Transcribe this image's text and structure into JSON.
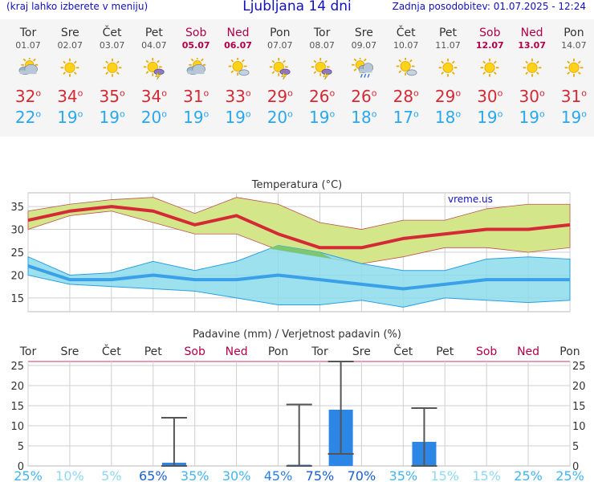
{
  "header": {
    "menu_hint": "(kraj lahko izberete v meniju)",
    "title": "Ljubljana 14 dni",
    "updated": "Zadnja posodobitev: 01.07.2025 - 12:24"
  },
  "colors": {
    "title_blue": "#1010c0",
    "weekend": "#b0004a",
    "tmax_red": "#d42a35",
    "tmin_blue": "#2aa8ee",
    "range_max_fill": "#d4e68a",
    "range_min_fill": "#8cdcec",
    "overlap_fill": "#7cc870",
    "bar_blue": "#2b86e6"
  },
  "days": [
    {
      "name": "Tor",
      "date": "01.07",
      "weekend": false,
      "icon": "partly-cloudy-icon",
      "tmax": "32",
      "tmin": "22"
    },
    {
      "name": "Sre",
      "date": "02.07",
      "weekend": false,
      "icon": "sunny-icon",
      "tmax": "34",
      "tmin": "19"
    },
    {
      "name": "Čet",
      "date": "03.07",
      "weekend": false,
      "icon": "sunny-icon",
      "tmax": "35",
      "tmin": "19"
    },
    {
      "name": "Pet",
      "date": "04.07",
      "weekend": false,
      "icon": "sun-thunderstorm-icon",
      "tmax": "34",
      "tmin": "20"
    },
    {
      "name": "Sob",
      "date": "05.07",
      "weekend": true,
      "icon": "partly-cloudy-icon",
      "tmax": "31",
      "tmin": "19"
    },
    {
      "name": "Ned",
      "date": "06.07",
      "weekend": true,
      "icon": "sun-cloud-icon",
      "tmax": "33",
      "tmin": "19"
    },
    {
      "name": "Pon",
      "date": "07.07",
      "weekend": false,
      "icon": "sun-thunderstorm-icon",
      "tmax": "29",
      "tmin": "20"
    },
    {
      "name": "Tor",
      "date": "08.07",
      "weekend": false,
      "icon": "sun-thunderstorm-icon",
      "tmax": "26",
      "tmin": "19"
    },
    {
      "name": "Sre",
      "date": "09.07",
      "weekend": false,
      "icon": "sun-rain-icon",
      "tmax": "26",
      "tmin": "18"
    },
    {
      "name": "Čet",
      "date": "10.07",
      "weekend": false,
      "icon": "sun-cloud-icon",
      "tmax": "28",
      "tmin": "17"
    },
    {
      "name": "Pet",
      "date": "11.07",
      "weekend": false,
      "icon": "sunny-icon",
      "tmax": "29",
      "tmin": "18"
    },
    {
      "name": "Sob",
      "date": "12.07",
      "weekend": true,
      "icon": "sunny-icon",
      "tmax": "30",
      "tmin": "19"
    },
    {
      "name": "Ned",
      "date": "13.07",
      "weekend": true,
      "icon": "sunny-icon",
      "tmax": "30",
      "tmin": "19"
    },
    {
      "name": "Pon",
      "date": "14.07",
      "weekend": false,
      "icon": "sunny-icon",
      "tmax": "31",
      "tmin": "19"
    }
  ],
  "chart_data": [
    {
      "type": "line",
      "title": "Temperatura (°C)",
      "watermark": "vreme.us",
      "x": [
        "Tor",
        "Sre",
        "Čet",
        "Pet",
        "Sob",
        "Ned",
        "Pon",
        "Tor",
        "Sre",
        "Čet",
        "Pet",
        "Sob",
        "Ned",
        "Pon"
      ],
      "ylim": [
        12,
        38
      ],
      "yticks": [
        15,
        20,
        25,
        30,
        35
      ],
      "grid": true,
      "series": [
        {
          "values": [
            32,
            34,
            35,
            34,
            31,
            33,
            29,
            26,
            26,
            28,
            29,
            30,
            30,
            31
          ]
        },
        {
          "values": [
            22,
            19,
            19,
            20,
            19,
            19,
            20,
            19,
            18,
            17,
            18,
            19,
            19,
            19
          ]
        },
        {
          "values": [
            34,
            35.5,
            36.5,
            37,
            33.5,
            37,
            35.5,
            31.5,
            30,
            32,
            32,
            34.5,
            35.5,
            35.5
          ]
        },
        {
          "values": [
            30,
            33,
            34,
            31.5,
            29,
            29,
            25.5,
            24,
            22.5,
            24,
            26,
            26,
            25,
            26
          ]
        },
        {
          "values": [
            24,
            20,
            20.5,
            23,
            21,
            23,
            26.5,
            25,
            22.5,
            21,
            21,
            23.5,
            24,
            23.5
          ]
        },
        {
          "values": [
            20,
            18,
            17.5,
            17,
            16.5,
            15,
            13.5,
            13.5,
            14.5,
            13,
            15,
            14.5,
            14,
            14.5
          ]
        }
      ]
    },
    {
      "type": "bar",
      "title": "Padavine (mm) / Verjetnost padavin (%)",
      "categories": [
        "Tor",
        "Sre",
        "Čet",
        "Pet",
        "Sob",
        "Ned",
        "Pon",
        "Tor",
        "Sre",
        "Čet",
        "Pet",
        "Sob",
        "Ned",
        "Pon"
      ],
      "weekend": [
        false,
        false,
        false,
        false,
        true,
        true,
        false,
        false,
        false,
        false,
        false,
        true,
        true,
        false
      ],
      "ylim": [
        0,
        26
      ],
      "yticks": [
        0,
        5,
        10,
        15,
        20,
        25
      ],
      "grid": true,
      "series": [
        {
          "values": [
            0,
            0,
            0,
            0.8,
            0,
            0,
            0.3,
            14,
            0,
            6,
            0,
            0,
            0,
            0
          ]
        },
        {
          "values": [
            0,
            0,
            0,
            0,
            0,
            0,
            0,
            3,
            0,
            0,
            0,
            0,
            0,
            0
          ]
        },
        {
          "values": [
            0,
            0,
            0,
            12,
            0,
            0,
            15.3,
            26,
            0,
            14.4,
            0,
            0,
            0,
            0
          ]
        }
      ],
      "probabilities": [
        "25%",
        "10%",
        "5%",
        "65%",
        "35%",
        "30%",
        "45%",
        "75%",
        "70%",
        "35%",
        "15%",
        "15%",
        "25%",
        "25%"
      ]
    }
  ]
}
